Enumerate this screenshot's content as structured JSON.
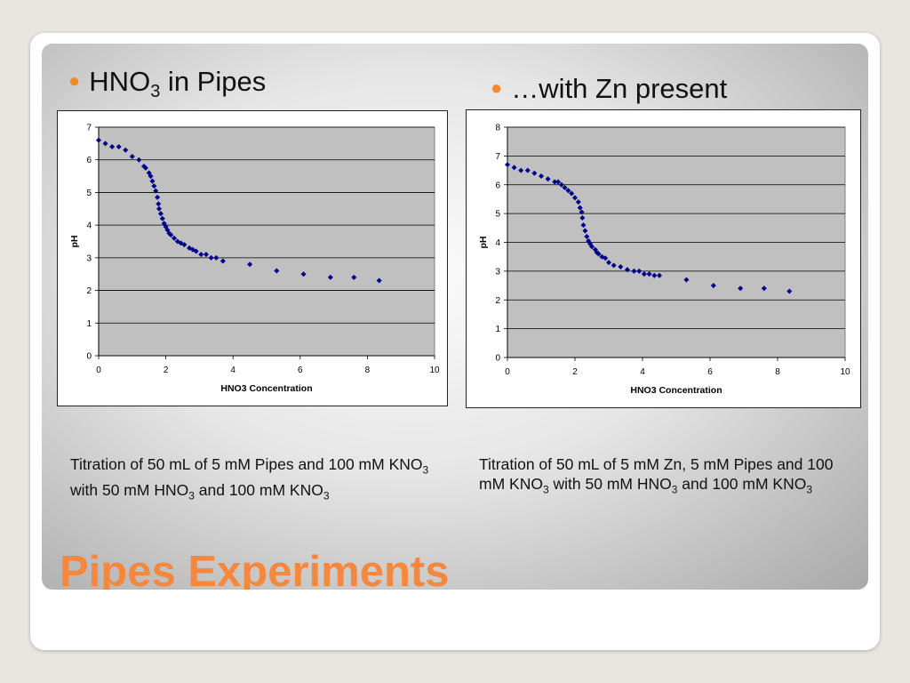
{
  "slide": {
    "title": "Pipes Experiments",
    "accent_color": "#f28a2b",
    "title_color": "#f5883c",
    "bullet_left": {
      "prefix": "HNO",
      "sub": "3",
      "suffix": " in Pipes"
    },
    "bullet_right": {
      "text": "…with Zn present"
    },
    "caption_left": {
      "p1": "Titration of 50 mL of 5 mM Pipes and 100 mM KNO",
      "s1": "3",
      "p2": " with 50 mM HNO",
      "s2": "3",
      "p3": " and 100 mM KNO",
      "s3": "3"
    },
    "caption_right": {
      "p1": "Titration of 50 mL of 5 mM Zn, 5 mM Pipes and 100 mM KNO",
      "s1": "3",
      "p2": " with 50 mM HNO",
      "s2": "3",
      "p3": " and 100 mM KNO",
      "s3": "3"
    }
  },
  "chart_data": [
    {
      "type": "scatter",
      "xlabel": "HNO3 Concentration",
      "ylabel": "pH",
      "xlim": [
        0,
        10
      ],
      "ylim": [
        0,
        7
      ],
      "xticks": [
        0,
        2,
        4,
        6,
        8,
        10
      ],
      "yticks": [
        0,
        1,
        2,
        3,
        4,
        5,
        6,
        7
      ],
      "grid": "horizontal",
      "marker_color": "#00008b",
      "plot_bg": "#c0c0c0",
      "points": [
        [
          0.0,
          6.6
        ],
        [
          0.2,
          6.5
        ],
        [
          0.4,
          6.4
        ],
        [
          0.6,
          6.4
        ],
        [
          0.8,
          6.3
        ],
        [
          1.0,
          6.1
        ],
        [
          1.2,
          6.0
        ],
        [
          1.35,
          5.8
        ],
        [
          1.4,
          5.75
        ],
        [
          1.5,
          5.6
        ],
        [
          1.55,
          5.5
        ],
        [
          1.6,
          5.35
        ],
        [
          1.65,
          5.2
        ],
        [
          1.7,
          5.05
        ],
        [
          1.75,
          4.85
        ],
        [
          1.78,
          4.65
        ],
        [
          1.8,
          4.5
        ],
        [
          1.85,
          4.35
        ],
        [
          1.9,
          4.2
        ],
        [
          1.95,
          4.05
        ],
        [
          2.0,
          3.95
        ],
        [
          2.05,
          3.85
        ],
        [
          2.1,
          3.75
        ],
        [
          2.15,
          3.7
        ],
        [
          2.25,
          3.6
        ],
        [
          2.35,
          3.5
        ],
        [
          2.45,
          3.45
        ],
        [
          2.55,
          3.4
        ],
        [
          2.7,
          3.3
        ],
        [
          2.8,
          3.25
        ],
        [
          2.9,
          3.2
        ],
        [
          3.05,
          3.1
        ],
        [
          3.2,
          3.1
        ],
        [
          3.35,
          3.0
        ],
        [
          3.5,
          3.0
        ],
        [
          3.7,
          2.9
        ],
        [
          4.5,
          2.8
        ],
        [
          5.3,
          2.6
        ],
        [
          6.1,
          2.5
        ],
        [
          6.9,
          2.4
        ],
        [
          7.6,
          2.4
        ],
        [
          8.35,
          2.3
        ]
      ]
    },
    {
      "type": "scatter",
      "xlabel": "HNO3 Concentration",
      "ylabel": "pH",
      "xlim": [
        0,
        10
      ],
      "ylim": [
        0,
        8
      ],
      "xticks": [
        0,
        2,
        4,
        6,
        8,
        10
      ],
      "yticks": [
        0,
        1,
        2,
        3,
        4,
        5,
        6,
        7,
        8
      ],
      "grid": "horizontal",
      "marker_color": "#00008b",
      "plot_bg": "#c0c0c0",
      "points": [
        [
          0.0,
          6.7
        ],
        [
          0.2,
          6.6
        ],
        [
          0.4,
          6.5
        ],
        [
          0.6,
          6.5
        ],
        [
          0.8,
          6.4
        ],
        [
          1.0,
          6.3
        ],
        [
          1.2,
          6.2
        ],
        [
          1.4,
          6.1
        ],
        [
          1.5,
          6.1
        ],
        [
          1.6,
          6.0
        ],
        [
          1.7,
          5.9
        ],
        [
          1.8,
          5.8
        ],
        [
          1.9,
          5.7
        ],
        [
          2.0,
          5.55
        ],
        [
          2.1,
          5.4
        ],
        [
          2.15,
          5.2
        ],
        [
          2.2,
          5.05
        ],
        [
          2.22,
          4.85
        ],
        [
          2.25,
          4.6
        ],
        [
          2.3,
          4.4
        ],
        [
          2.35,
          4.2
        ],
        [
          2.4,
          4.05
        ],
        [
          2.45,
          3.95
        ],
        [
          2.5,
          3.85
        ],
        [
          2.6,
          3.75
        ],
        [
          2.65,
          3.65
        ],
        [
          2.7,
          3.6
        ],
        [
          2.8,
          3.5
        ],
        [
          2.9,
          3.45
        ],
        [
          3.0,
          3.3
        ],
        [
          3.15,
          3.2
        ],
        [
          3.35,
          3.15
        ],
        [
          3.55,
          3.05
        ],
        [
          3.75,
          3.0
        ],
        [
          3.9,
          3.0
        ],
        [
          4.05,
          2.9
        ],
        [
          4.2,
          2.9
        ],
        [
          4.35,
          2.85
        ],
        [
          4.5,
          2.85
        ],
        [
          5.3,
          2.7
        ],
        [
          6.1,
          2.5
        ],
        [
          6.9,
          2.4
        ],
        [
          7.6,
          2.4
        ],
        [
          8.35,
          2.3
        ]
      ]
    }
  ]
}
